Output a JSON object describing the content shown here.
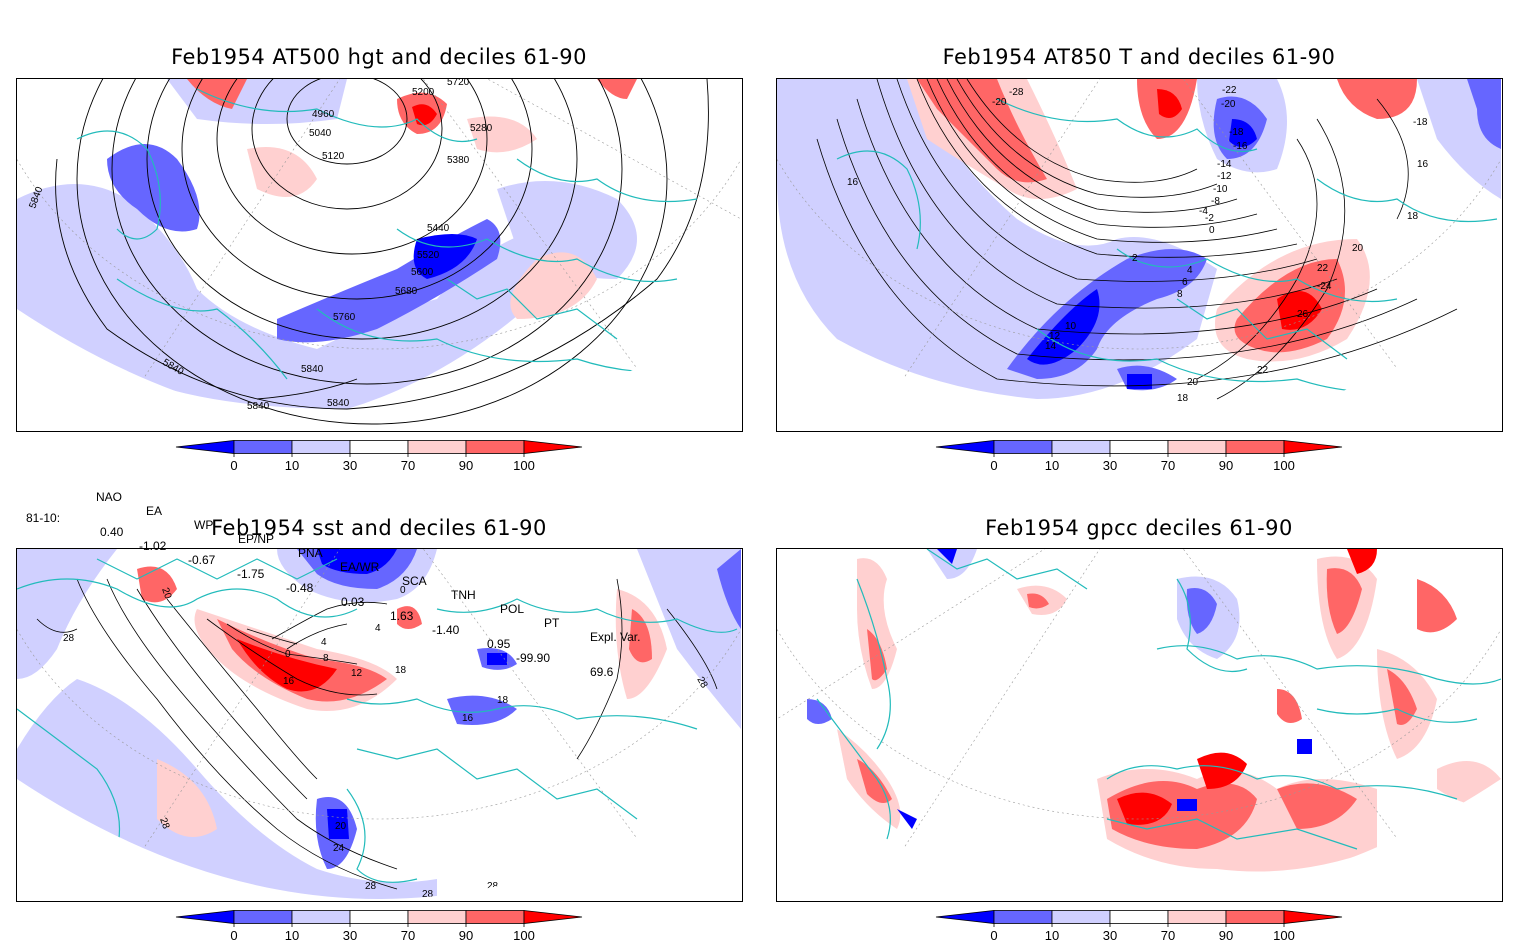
{
  "panels": {
    "p1": {
      "title": "Feb1954 AT500 hgt and deciles 61-90",
      "labels": [
        "4960",
        "5040",
        "5120",
        "5200",
        "5280",
        "5380",
        "5440",
        "5520",
        "5600",
        "5680",
        "5760",
        "5840",
        "5840",
        "5840",
        "5840",
        "5840",
        "5720"
      ]
    },
    "p2": {
      "title": "Feb1954 AT850 T and deciles 61-90",
      "labels": [
        "-28",
        "-20",
        "-22",
        "-20",
        "-18",
        "-16",
        "-14",
        "-12",
        "-10",
        "-8",
        "-4",
        "-2",
        "0",
        "2",
        "4",
        "6",
        "8",
        "10",
        "12",
        "14",
        "16",
        "16",
        "18",
        "18",
        "20",
        "20",
        "22",
        "22",
        "-24",
        "26",
        "-18"
      ]
    },
    "p3": {
      "title": "Feb1954 sst and deciles 61-90",
      "labels": [
        "20",
        "28",
        "0",
        "4",
        "8",
        "12",
        "16",
        "16",
        "18",
        "18",
        "20",
        "24",
        "28",
        "28",
        "28",
        "28",
        "28",
        "0",
        "4"
      ]
    },
    "p4": {
      "title": "Feb1954 gpcc deciles 61-90"
    }
  },
  "colorbar": {
    "ticks": [
      "0",
      "10",
      "30",
      "70",
      "90",
      "100"
    ],
    "colors": [
      "#0000ff",
      "#6666ff",
      "#d0d0ff",
      "#ffffff",
      "#ffd0d0",
      "#ff6666",
      "#ff0000"
    ]
  },
  "indices": {
    "headers": [
      "NAO",
      "EA",
      "WP",
      "EP/NP",
      "PNA",
      "EA/WR",
      "SCA",
      "TNH",
      "POL",
      "PT",
      "Expl. Var."
    ],
    "row_label": "81-10:",
    "values": [
      "0.40",
      "-1.02",
      "-0.67",
      "-1.75",
      "-0.48",
      "0.03",
      "1.63",
      "-1.40",
      "0.95",
      "-99.90",
      "69.6"
    ]
  }
}
